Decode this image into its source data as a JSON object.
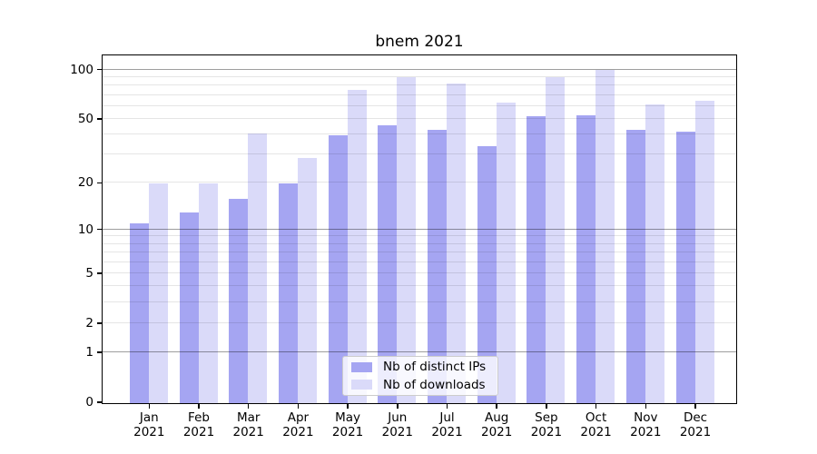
{
  "chart_data": {
    "type": "bar",
    "title": "bnem 2021",
    "categories": [
      "Jan",
      "Feb",
      "Mar",
      "Apr",
      "May",
      "Jun",
      "Jul",
      "Aug",
      "Sep",
      "Oct",
      "Nov",
      "Dec"
    ],
    "x_tick_second_line": "2021",
    "series": [
      {
        "name": "Nb of distinct IPs",
        "color": "#a5a5f2",
        "values": [
          11,
          13,
          16,
          20,
          40,
          46,
          43,
          34,
          52,
          53,
          43,
          42
        ]
      },
      {
        "name": "Nb of downloads",
        "color": "#dadaf9",
        "values": [
          20,
          20,
          41,
          29,
          76,
          90,
          83,
          63,
          91,
          100,
          62,
          65
        ]
      }
    ],
    "y_ticks": [
      {
        "value": 0,
        "label": "0"
      },
      {
        "value": 1,
        "label": "1"
      },
      {
        "value": 2,
        "label": "2"
      },
      {
        "value": 5,
        "label": "5"
      },
      {
        "value": 10,
        "label": "10"
      },
      {
        "value": 20,
        "label": "20"
      },
      {
        "value": 50,
        "label": "50"
      },
      {
        "value": 100,
        "label": "100"
      }
    ],
    "major_gridline_values": [
      1,
      10,
      100
    ],
    "minor_gridline_values": [
      2,
      3,
      4,
      5,
      6,
      7,
      8,
      9,
      20,
      30,
      40,
      50,
      60,
      70,
      80,
      90
    ],
    "scale": "log1p",
    "ylim": [
      0,
      122
    ],
    "xlabel": "",
    "ylabel": "",
    "grid": true,
    "legend_position": "lower center",
    "colors": {
      "background": "#ffffff",
      "spine": "#000000",
      "major_grid": "rgba(0,0,0,0.38)",
      "minor_grid": "rgba(0,0,0,0.10)"
    }
  }
}
